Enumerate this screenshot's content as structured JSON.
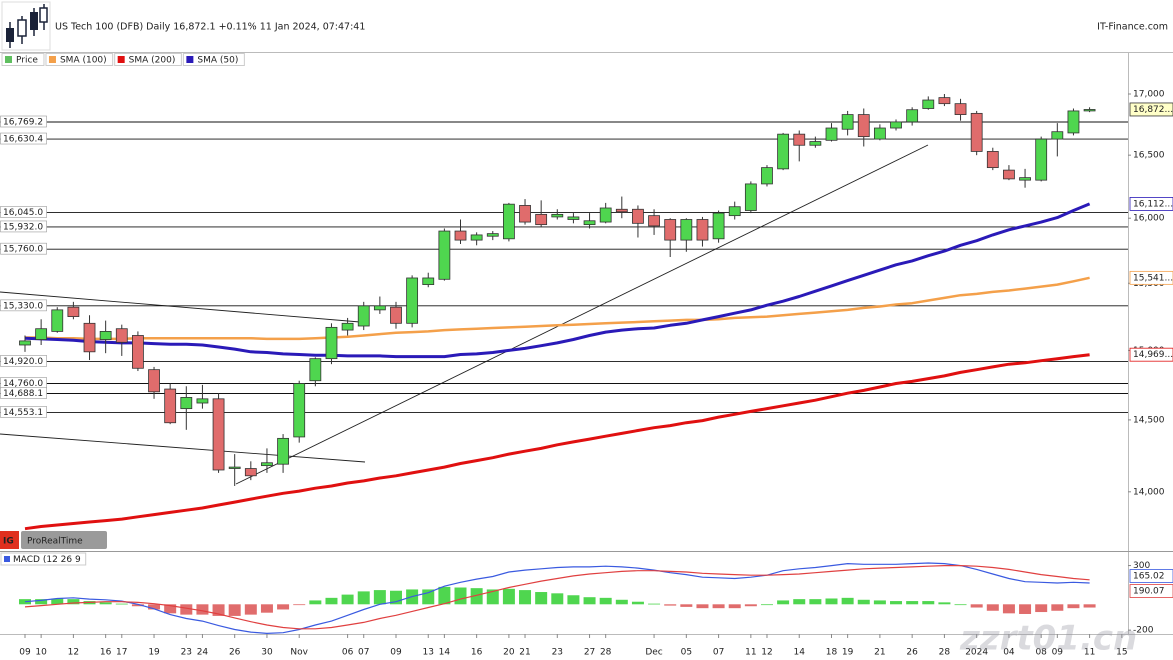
{
  "chart_data": [
    {
      "type": "candlestick",
      "title": "US Tech 100 (DFB) Daily 16,872.1 +0.11% 11 Jan 2024, 07:47:41",
      "source": "IT-Finance.com",
      "categories": [
        "09",
        "10",
        null,
        "12",
        null,
        "16",
        "17",
        null,
        "19",
        null,
        "23",
        "24",
        null,
        "26",
        null,
        "30",
        null,
        "Nov",
        null,
        null,
        "06",
        "07",
        null,
        "09",
        null,
        "13",
        "14",
        null,
        "16",
        null,
        "20",
        "21",
        null,
        "23",
        null,
        "27",
        "28",
        null,
        null,
        "Dec",
        null,
        "05",
        null,
        "07",
        null,
        "11",
        "12",
        null,
        "14",
        null,
        "18",
        "19",
        null,
        "21",
        null,
        "26",
        null,
        "28",
        null,
        "2024",
        null,
        "04",
        null,
        "08",
        "09",
        null,
        "11",
        null,
        "15"
      ],
      "yscale": "log",
      "ylim": [
        13608,
        17352
      ],
      "yticks": [
        {
          "value": 14000,
          "label": "14,000"
        },
        {
          "value": 14500,
          "label": "14,500"
        },
        {
          "value": 15000,
          "label": "15,000"
        },
        {
          "value": 15500,
          "label": "15,500"
        },
        {
          "value": 16000,
          "label": "16,000"
        },
        {
          "value": 16500,
          "label": "16,500"
        },
        {
          "value": 17000,
          "label": "17,000"
        }
      ],
      "grid": false,
      "levels": [
        {
          "value": 16769.2,
          "label": "16,769.2"
        },
        {
          "value": 16630.4,
          "label": "16,630.4"
        },
        {
          "value": 16045,
          "label": "16,045.0"
        },
        {
          "value": 15932,
          "label": "15,932.0"
        },
        {
          "value": 15760,
          "label": "15,760.0"
        },
        {
          "value": 15330,
          "label": "15,330.0"
        },
        {
          "value": 14920,
          "label": "14,920.0"
        },
        {
          "value": 14760,
          "label": "14,760.0"
        },
        {
          "value": 14688.1,
          "label": "14,688.1"
        },
        {
          "value": 14553.1,
          "label": "14,553.1"
        }
      ],
      "series": [
        {
          "name": "Price",
          "type": "candlestick",
          "color": "#5fbf5f",
          "up_color": "#4fd64f",
          "down_color": "#e06c6c",
          "last_label": "16,872...",
          "open": [
            15040,
            15080,
            15140,
            15320,
            15200,
            15080,
            15160,
            15110,
            14860,
            14720,
            14580,
            14620,
            14650,
            14160,
            14160,
            14180,
            14190,
            14380,
            14780,
            14940,
            15150,
            15180,
            15300,
            15320,
            15200,
            15490,
            15530,
            15900,
            15830,
            15860,
            15840,
            16100,
            16030,
            16010,
            15990,
            15950,
            15970,
            16070,
            16070,
            16020,
            15990,
            15830,
            15990,
            15840,
            16020,
            16060,
            16270,
            16390,
            16670,
            16580,
            16620,
            16710,
            16830,
            16630,
            16720,
            16770,
            16880,
            16970,
            16920,
            16840,
            16530,
            16380,
            16300,
            16300,
            16630,
            16680,
            16860,
            null,
            null
          ],
          "high": [
            15110,
            15230,
            15320,
            15360,
            15260,
            15220,
            15190,
            15140,
            14880,
            14760,
            14740,
            14750,
            14690,
            14260,
            14210,
            14300,
            14400,
            14780,
            14950,
            15200,
            15240,
            15360,
            15400,
            15360,
            15560,
            15580,
            15920,
            15990,
            15890,
            15900,
            16120,
            16150,
            16140,
            16070,
            16040,
            16040,
            16120,
            16170,
            16100,
            16070,
            16000,
            16000,
            16010,
            16060,
            16130,
            16290,
            16420,
            16680,
            16700,
            16650,
            16760,
            16860,
            16880,
            16750,
            16790,
            16890,
            16980,
            17000,
            16960,
            16860,
            16560,
            16420,
            16390,
            16650,
            16760,
            16880,
            16890,
            null,
            null
          ],
          "low": [
            14990,
            15040,
            15130,
            15230,
            14930,
            14980,
            14960,
            14850,
            14650,
            14470,
            14430,
            14580,
            14130,
            14040,
            14080,
            14130,
            14130,
            14340,
            14740,
            14900,
            15110,
            15150,
            15270,
            15160,
            15170,
            15470,
            15520,
            15800,
            15790,
            15830,
            15820,
            15950,
            15930,
            15990,
            15960,
            15920,
            15960,
            16000,
            15850,
            15870,
            15700,
            15740,
            15780,
            15810,
            15990,
            16040,
            16250,
            16380,
            16450,
            16560,
            16610,
            16660,
            16570,
            16620,
            16700,
            16740,
            16870,
            16900,
            16780,
            16500,
            16380,
            16300,
            16240,
            16290,
            16490,
            16660,
            16850,
            null,
            null
          ],
          "close": [
            15070,
            15160,
            15300,
            15250,
            14990,
            15140,
            15060,
            14870,
            14700,
            14480,
            14660,
            14650,
            14150,
            14170,
            14110,
            14200,
            14370,
            14760,
            14940,
            15170,
            15200,
            15330,
            15330,
            15200,
            15540,
            15540,
            15900,
            15830,
            15870,
            15880,
            16110,
            15970,
            15950,
            16030,
            16010,
            15980,
            16080,
            16050,
            15960,
            15940,
            15830,
            15990,
            15830,
            16040,
            16090,
            16270,
            16400,
            16670,
            16580,
            16610,
            16720,
            16830,
            16650,
            16720,
            16770,
            16870,
            16950,
            16920,
            16830,
            16530,
            16400,
            16310,
            16320,
            16630,
            16690,
            16860,
            16872.1,
            null,
            null
          ]
        },
        {
          "name": "SMA (100)",
          "type": "line",
          "color": "#f4a04a",
          "width": 2.5,
          "last_label": "15,541...",
          "values": [
            15095,
            15095,
            15090,
            15090,
            15085,
            15085,
            15085,
            15090,
            15090,
            15090,
            15090,
            15090,
            15090,
            15090,
            15090,
            15085,
            15085,
            15085,
            15090,
            15095,
            15100,
            15110,
            15120,
            15130,
            15135,
            15140,
            15150,
            15155,
            15160,
            15165,
            15170,
            15175,
            15180,
            15185,
            15190,
            15195,
            15200,
            15205,
            15210,
            15215,
            15220,
            15225,
            15225,
            15230,
            15240,
            15245,
            15250,
            15260,
            15270,
            15280,
            15290,
            15300,
            15315,
            15325,
            15340,
            15350,
            15370,
            15390,
            15410,
            15420,
            15435,
            15445,
            15460,
            15475,
            15490,
            15515,
            15541,
            null,
            null
          ]
        },
        {
          "name": "SMA (200)",
          "type": "line",
          "color": "#e01010",
          "width": 3,
          "last_label": "14,969...",
          "values": [
            13750,
            13765,
            13775,
            13785,
            13795,
            13805,
            13815,
            13830,
            13845,
            13860,
            13875,
            13890,
            13910,
            13930,
            13950,
            13970,
            13990,
            14005,
            14025,
            14040,
            14060,
            14075,
            14095,
            14110,
            14130,
            14150,
            14170,
            14195,
            14215,
            14235,
            14260,
            14280,
            14300,
            14325,
            14345,
            14365,
            14385,
            14405,
            14425,
            14445,
            14460,
            14480,
            14495,
            14520,
            14540,
            14560,
            14580,
            14600,
            14620,
            14640,
            14665,
            14690,
            14710,
            14735,
            14760,
            14775,
            14795,
            14815,
            14840,
            14860,
            14880,
            14900,
            14910,
            14925,
            14940,
            14955,
            14969,
            null,
            null
          ]
        },
        {
          "name": "SMA (50)",
          "type": "line",
          "color": "#2a1ab8",
          "width": 3,
          "last_label": "16,112...",
          "values": [
            15090,
            15085,
            15080,
            15075,
            15065,
            15060,
            15055,
            15055,
            15050,
            15045,
            15045,
            15040,
            15025,
            15010,
            14990,
            14985,
            14975,
            14970,
            14965,
            14965,
            14960,
            14960,
            14960,
            14955,
            14955,
            14955,
            14955,
            14970,
            14975,
            14985,
            15000,
            15015,
            15035,
            15055,
            15080,
            15110,
            15135,
            15150,
            15160,
            15165,
            15185,
            15200,
            15225,
            15250,
            15275,
            15300,
            15335,
            15365,
            15400,
            15440,
            15480,
            15520,
            15560,
            15600,
            15640,
            15670,
            15710,
            15745,
            15790,
            15825,
            15870,
            15910,
            15940,
            15970,
            16005,
            16060,
            16112,
            null,
            null
          ]
        }
      ],
      "watermark": {
        "logo": "IG",
        "text": "ProRealTime"
      }
    },
    {
      "type": "macd",
      "title": "MACD (12 26 9",
      "ylim": [
        -230,
        405
      ],
      "yticks": [
        300,
        -200
      ],
      "series": [
        {
          "type": "bar",
          "up_color": "#4fd64f",
          "down_color": "#e06c6c",
          "values": [
            40,
            40,
            45,
            40,
            25,
            15,
            5,
            -15,
            -40,
            -70,
            -80,
            -80,
            -90,
            -90,
            -80,
            -65,
            -40,
            -5,
            30,
            50,
            75,
            100,
            110,
            105,
            115,
            115,
            135,
            130,
            125,
            115,
            120,
            110,
            95,
            85,
            70,
            55,
            50,
            35,
            20,
            5,
            -10,
            -20,
            -30,
            -30,
            -30,
            -15,
            0,
            30,
            40,
            40,
            45,
            50,
            35,
            30,
            25,
            25,
            25,
            15,
            0,
            -25,
            -50,
            -70,
            -75,
            -60,
            -50,
            -30,
            -25.05,
            null,
            null
          ]
        },
        {
          "type": "line",
          "color": "#3a5ae0",
          "width": 1.2,
          "last_label": "165.02",
          "values": [
            20,
            30,
            45,
            50,
            40,
            35,
            25,
            0,
            -35,
            -80,
            -110,
            -130,
            -165,
            -195,
            -215,
            -225,
            -220,
            -195,
            -160,
            -130,
            -85,
            -40,
            0,
            20,
            60,
            90,
            140,
            170,
            195,
            215,
            250,
            265,
            275,
            285,
            290,
            290,
            295,
            290,
            280,
            265,
            245,
            230,
            210,
            205,
            200,
            210,
            225,
            260,
            275,
            285,
            300,
            315,
            310,
            310,
            310,
            315,
            320,
            315,
            300,
            270,
            235,
            200,
            175,
            170,
            165,
            170,
            165.02,
            null,
            null
          ]
        },
        {
          "type": "line",
          "color": "#e04040",
          "width": 1.2,
          "last_label": "190.07",
          "values": [
            -20,
            -10,
            0,
            10,
            15,
            20,
            20,
            15,
            5,
            -10,
            -30,
            -50,
            -75,
            -105,
            -135,
            -160,
            -180,
            -190,
            -190,
            -180,
            -160,
            -140,
            -110,
            -85,
            -55,
            -25,
            5,
            40,
            70,
            100,
            130,
            155,
            180,
            200,
            220,
            235,
            245,
            255,
            260,
            260,
            255,
            250,
            240,
            235,
            230,
            225,
            225,
            230,
            235,
            245,
            255,
            265,
            275,
            280,
            285,
            290,
            295,
            300,
            300,
            295,
            285,
            270,
            250,
            230,
            215,
            200,
            190.07,
            null,
            null
          ]
        }
      ]
    }
  ],
  "overlay_text": "zzrt01.cn"
}
